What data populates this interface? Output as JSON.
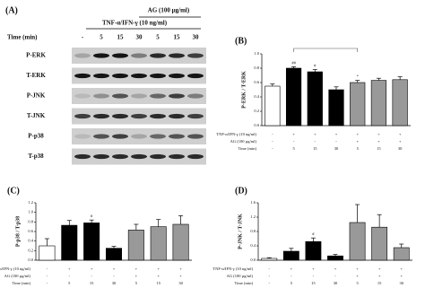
{
  "panel_a": {
    "label": "(A)",
    "ag_label": "AG (100 µg/ml)",
    "treatment_label": "TNF-α/IFN-γ (10 ng/ml)",
    "time_label": "Time (min)",
    "time_values": [
      "-",
      "5",
      "15",
      "30",
      "5",
      "15",
      "30"
    ],
    "rows": [
      "P-ERK",
      "T-ERK",
      "P-JNK",
      "T-JNK",
      "P-p38",
      "T-p38"
    ]
  },
  "chart_data": [
    {
      "type": "bar",
      "panel_label": "(B)",
      "y_label": "P-ERK / T-ERK",
      "values": [
        0.55,
        0.8,
        0.75,
        0.5,
        0.6,
        0.63,
        0.64
      ],
      "errors": [
        0.03,
        0.02,
        0.03,
        0.04,
        0.03,
        0.03,
        0.04
      ],
      "colors": [
        "#ffffff",
        "#000000",
        "#000000",
        "#000000",
        "#999999",
        "#999999",
        "#999999"
      ],
      "ylim": [
        0,
        1
      ],
      "yticks": [
        {
          "value": 0,
          "label": "0.0"
        },
        0.2,
        0.4,
        0.6,
        0.8,
        {
          "value": 1,
          "label": "1.0"
        }
      ],
      "annotations": [
        {
          "text": "##",
          "index": 1
        },
        {
          "text": "#",
          "index": 2
        },
        {
          "text": "*",
          "index": 4
        }
      ],
      "conditions": [
        {
          "label": "TNF-α/IFN-γ (10 ng/ml)",
          "values": [
            "-",
            "+",
            "+",
            "+",
            "+",
            "+",
            "+"
          ]
        },
        {
          "label": "AG (100 µg/ml)",
          "values": [
            "-",
            "-",
            "-",
            "-",
            "+",
            "+",
            "+"
          ]
        },
        {
          "label": "Time (min)",
          "values": [
            "-",
            "5",
            "15",
            "30",
            "5",
            "15",
            "30"
          ]
        }
      ]
    },
    {
      "type": "bar",
      "panel_label": "(C)",
      "y_label": "P-p38 / T-p38",
      "values": [
        0.3,
        0.73,
        0.78,
        0.25,
        0.63,
        0.7,
        0.75
      ],
      "errors": [
        0.15,
        0.1,
        0.06,
        0.04,
        0.12,
        0.15,
        0.18
      ],
      "colors": [
        "#ffffff",
        "#000000",
        "#000000",
        "#000000",
        "#999999",
        "#999999",
        "#999999"
      ],
      "ylim": [
        0,
        1.2
      ],
      "yticks": [
        {
          "value": 0,
          "label": "0.0"
        },
        0.2,
        0.4,
        0.6,
        0.8,
        {
          "value": 1,
          "label": "1.0"
        },
        1.2
      ],
      "annotations": [
        {
          "text": "#",
          "index": 2
        }
      ],
      "conditions": [
        {
          "label": "TNF-α/IFN-γ (10 ng/ml)",
          "values": [
            "-",
            "+",
            "+",
            "+",
            "+",
            "+",
            "+"
          ]
        },
        {
          "label": "AG (100 µg/ml)",
          "values": [
            "-",
            "-",
            "-",
            "-",
            "+",
            "+",
            "+"
          ]
        },
        {
          "label": "Time (min)",
          "values": [
            "-",
            "5",
            "15",
            "30",
            "5",
            "15",
            "30"
          ]
        }
      ]
    },
    {
      "type": "bar",
      "panel_label": "(D)",
      "y_label": "P-JNK / T-JNK",
      "values": [
        0.05,
        0.25,
        0.52,
        0.12,
        1.05,
        0.92,
        0.35
      ],
      "errors": [
        0.02,
        0.08,
        0.1,
        0.04,
        0.5,
        0.35,
        0.1
      ],
      "colors": [
        "#ffffff",
        "#000000",
        "#000000",
        "#000000",
        "#999999",
        "#999999",
        "#999999"
      ],
      "ylim": [
        0,
        1.6
      ],
      "yticks": [
        {
          "value": 0,
          "label": "0.0"
        },
        0.4,
        0.8,
        1.2,
        1.6
      ],
      "annotations": [
        {
          "text": "#",
          "index": 2
        }
      ],
      "conditions": [
        {
          "label": "TNF-α/IFN-γ (10 ng/ml)",
          "values": [
            "-",
            "+",
            "+",
            "+",
            "+",
            "+",
            "+"
          ]
        },
        {
          "label": "AG (100 µg/ml)",
          "values": [
            "-",
            "-",
            "-",
            "-",
            "+",
            "+",
            "+"
          ]
        },
        {
          "label": "Time (min)",
          "values": [
            "-",
            "5",
            "15",
            "30",
            "5",
            "15",
            "30"
          ]
        }
      ]
    }
  ]
}
